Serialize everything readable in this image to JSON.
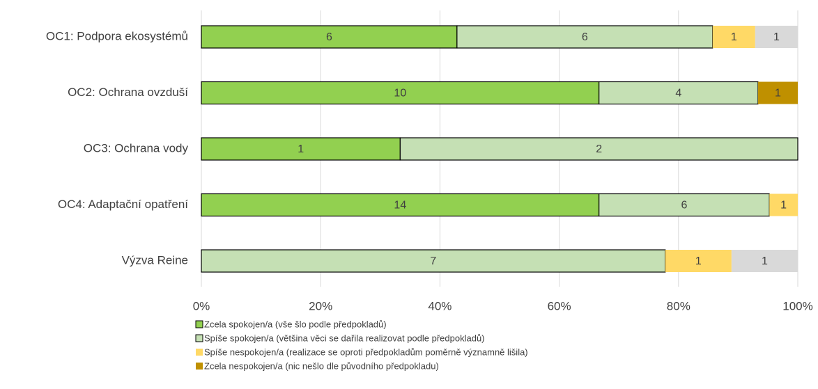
{
  "chart_data": {
    "type": "bar",
    "orientation": "horizontal",
    "stacking": "percent",
    "categories": [
      "OC1: Podpora ekosystémů",
      "OC2: Ochrana ovzduší",
      "OC3: Ochrana vody",
      "OC4: Adaptační opatření",
      "Výzva Reine"
    ],
    "series": [
      {
        "name": "Zcela spokojen/a (vše šlo podle předpokladů)",
        "color": "#92d050",
        "border": "#000000",
        "values": [
          6,
          10,
          1,
          14,
          0
        ]
      },
      {
        "name": "Spíše spokojen/a (většina věci se dařila realizovat podle předpokladů)",
        "color": "#c5e0b4",
        "border": "#000000",
        "values": [
          6,
          4,
          2,
          6,
          7
        ]
      },
      {
        "name": "Spíše nespokojen/a (realizace se oproti předpokladům poměrně významně lišila)",
        "color": "#ffd966",
        "values": [
          1,
          0,
          0,
          1,
          1
        ]
      },
      {
        "name": "Zcela nespokojen/a (nic nešlo dle původního předpokladu)",
        "color": "#bf9000",
        "values": [
          0,
          1,
          0,
          0,
          0
        ]
      },
      {
        "name": null,
        "color": "#d9d9d9",
        "values": [
          1,
          0,
          0,
          0,
          1
        ]
      }
    ],
    "xlim": [
      0,
      100
    ],
    "xticks": [
      {
        "value": 0,
        "label": "0%"
      },
      {
        "value": 20,
        "label": "20%"
      },
      {
        "value": 40,
        "label": "40%"
      },
      {
        "value": 60,
        "label": "60%"
      },
      {
        "value": 80,
        "label": "80%"
      },
      {
        "value": 100,
        "label": "100%"
      }
    ],
    "grid": true,
    "legend": "bottom"
  }
}
